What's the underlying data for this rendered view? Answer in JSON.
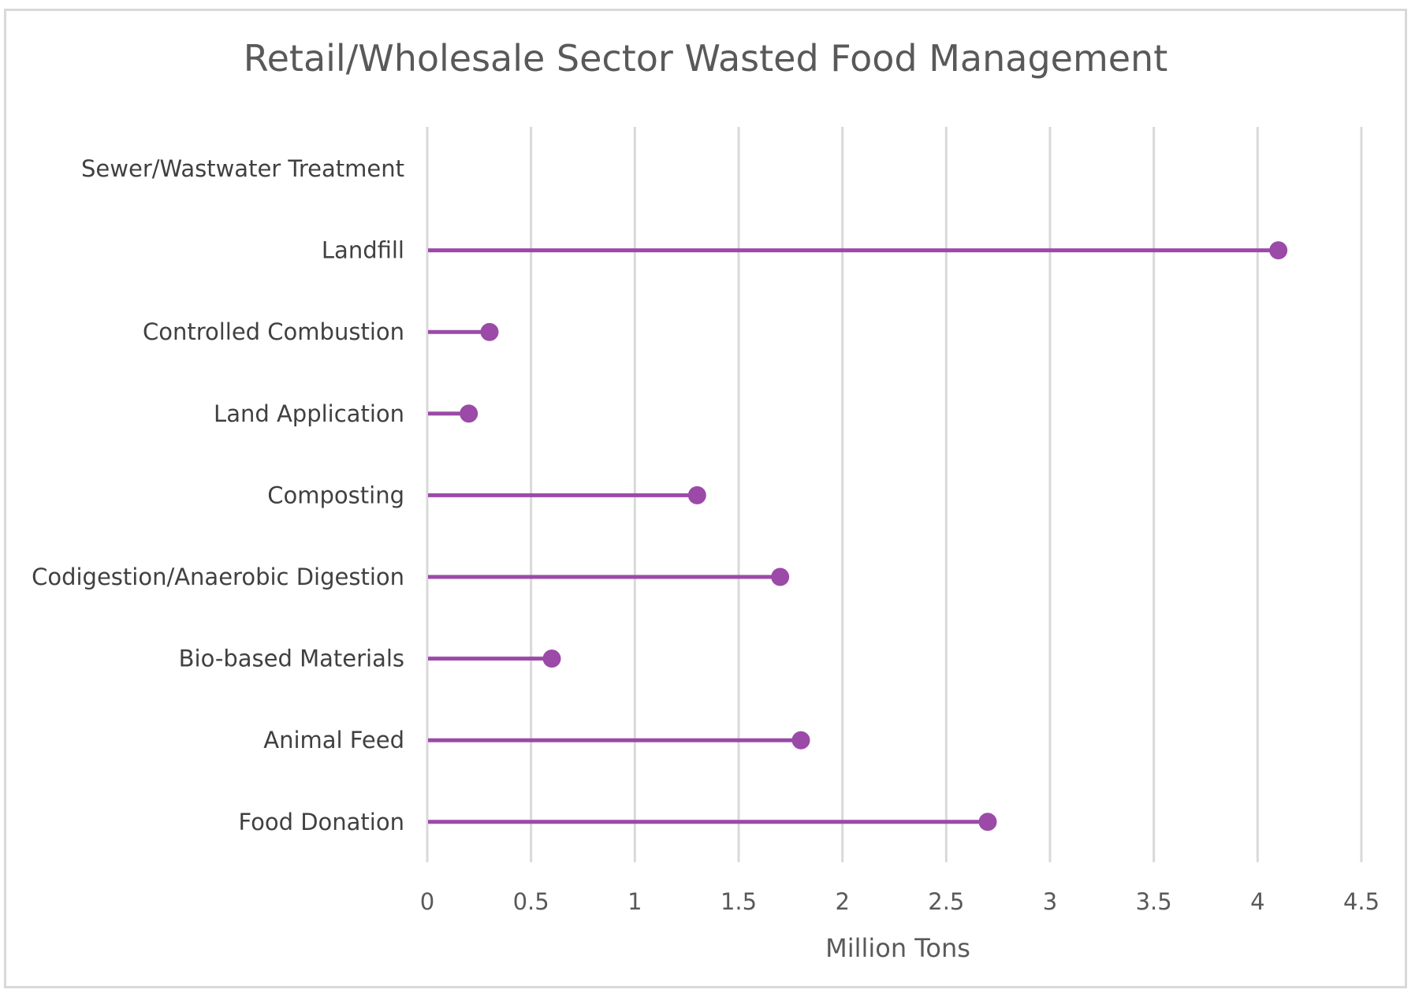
{
  "chart_data": {
    "type": "lollipop",
    "title": "Retail/Wholesale Sector Wasted Food Management",
    "xlabel": "Million Tons",
    "ylabel": "",
    "orientation": "horizontal",
    "xlim": [
      0,
      4.5
    ],
    "xticks": [
      "0",
      "0.5",
      "1",
      "1.5",
      "2",
      "2.5",
      "3",
      "3.5",
      "4",
      "4.5"
    ],
    "xtick_values": [
      0,
      0.5,
      1,
      1.5,
      2,
      2.5,
      3,
      3.5,
      4,
      4.5
    ],
    "grid": "vertical",
    "legend": "none",
    "color": "#9b4aa8",
    "gridline_color": "#d9d9d9",
    "categories": [
      "Sewer/Wastwater Treatment",
      "Landfill",
      "Controlled Combustion",
      "Land Application",
      "Composting",
      "Codigestion/Anaerobic Digestion",
      "Bio-based Materials",
      "Animal Feed",
      "Food Donation"
    ],
    "values": [
      null,
      4.1,
      0.3,
      0.2,
      1.3,
      1.7,
      0.6,
      1.8,
      2.7
    ]
  }
}
